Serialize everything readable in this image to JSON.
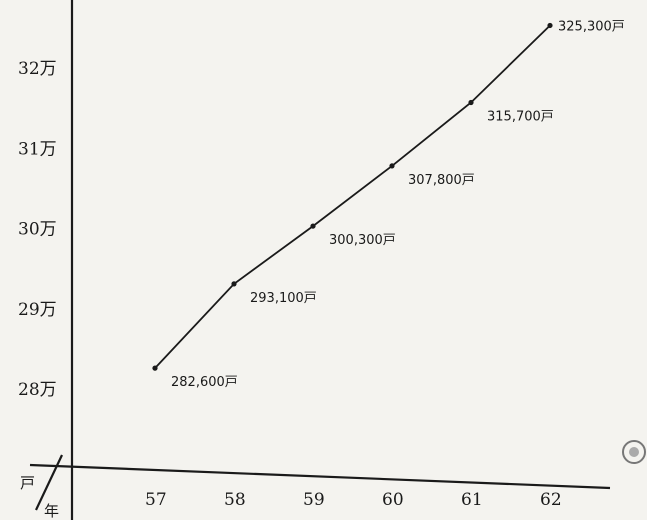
{
  "chart_data": {
    "type": "line",
    "x": [
      "57",
      "58",
      "59",
      "60",
      "61",
      "62"
    ],
    "values": [
      282600,
      293100,
      300300,
      307800,
      315700,
      325300
    ],
    "data_labels": [
      "282,600戸",
      "293,100戸",
      "300,300戸",
      "307,800戸",
      "315,700戸",
      "325,300戸"
    ],
    "y_ticks": [
      280000,
      290000,
      300000,
      310000,
      320000
    ],
    "y_tick_labels": [
      "28万",
      "29万",
      "30万",
      "31万",
      "32万"
    ],
    "y_unit_label": "戸",
    "x_unit_label": "年",
    "grid": false,
    "legend": "none"
  }
}
